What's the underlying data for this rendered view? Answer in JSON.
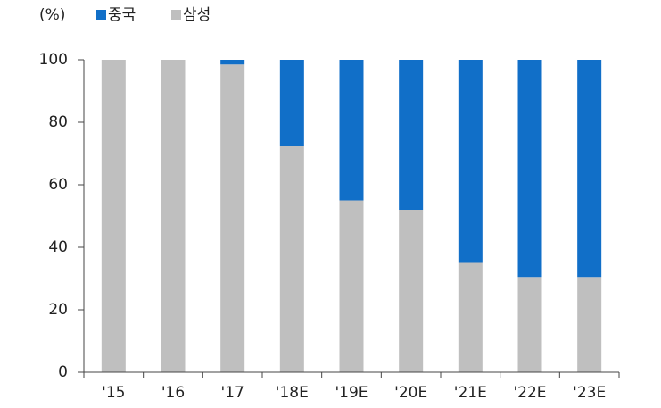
{
  "chart_data": {
    "type": "stacked_bar",
    "unit_label": "(%)",
    "categories": [
      "'15",
      "'16",
      "'17",
      "'18E",
      "'19E",
      "'20E",
      "'21E",
      "'22E",
      "'23E"
    ],
    "series": [
      {
        "name": "중국",
        "color": "#116fc8",
        "values": [
          0,
          0,
          1.5,
          27.5,
          45,
          48,
          65,
          69.5,
          69.5
        ]
      },
      {
        "name": "삼성",
        "color": "#bfbfbf",
        "values": [
          100,
          100,
          98.5,
          72.5,
          55,
          52,
          35,
          30.5,
          30.5
        ]
      }
    ],
    "stack_from_bottom": [
      "삼성",
      "중국"
    ],
    "ylim": [
      0,
      100
    ],
    "yticks": [
      0,
      20,
      40,
      60,
      80,
      100
    ],
    "grid": false
  }
}
